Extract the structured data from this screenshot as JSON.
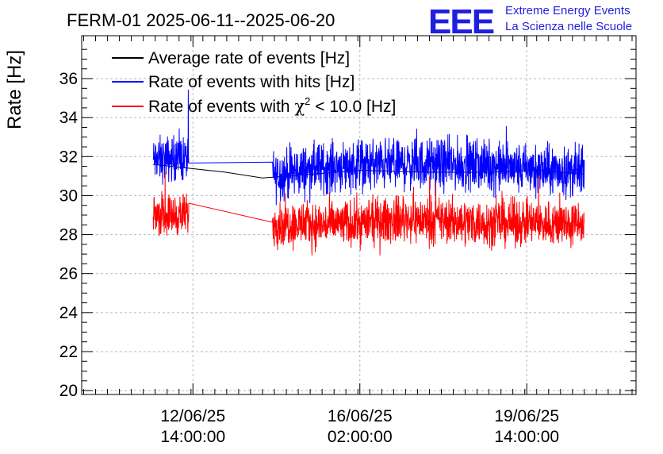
{
  "chart_data": {
    "type": "line",
    "title": "FERM-01 2025-06-11--2025-06-20",
    "ylabel": "Rate [Hz]",
    "xlabel": "",
    "ylim": [
      19.8,
      38.2
    ],
    "y_ticks": [
      20,
      22,
      24,
      26,
      28,
      30,
      32,
      34,
      36
    ],
    "xlim_hours_since_2025-06-11T00:00": [
      -18,
      261
    ],
    "x_ticks": [
      {
        "label_date": "12/06/25",
        "label_time": "14:00:00",
        "hours": 38
      },
      {
        "label_date": "16/06/25",
        "label_time": "02:00:00",
        "hours": 122
      },
      {
        "label_date": "19/06/25",
        "label_time": "14:00:00",
        "hours": 206
      }
    ],
    "grid": true,
    "legend_position": "top-left",
    "series": [
      {
        "name": "Average rate of events [Hz]",
        "color": "#000000",
        "segments": [
          {
            "x_hours": [
              18.0,
              54.5,
              73.0,
              122.5,
              156.0,
              188.0,
              212.0,
              235.0
            ],
            "y": [
              31.6,
              31.2,
              30.9,
              31.3,
              31.2,
              31.2,
              31.3,
              31.1
            ]
          }
        ]
      },
      {
        "name": "Rate of events with hits [Hz]",
        "color": "#0000ff",
        "segments": [
          {
            "x_hours": [
              18.0,
              27.0,
              36.0
            ],
            "y": [
              31.8,
              31.9,
              31.9
            ],
            "noise": 1.0
          },
          {
            "x_hours": [
              78.0,
              100.0,
              122.0,
              144.0,
              166.0,
              188.0,
              212.0,
              235.0
            ],
            "y": [
              31.0,
              31.4,
              31.6,
              31.6,
              31.6,
              31.5,
              31.3,
              31.2
            ],
            "noise": 1.1
          }
        ]
      },
      {
        "name": "Rate of events with χ² < 10.0 [Hz]",
        "color": "#ff0000",
        "segments": [
          {
            "x_hours": [
              18.0,
              27.0,
              36.0
            ],
            "y": [
              29.1,
              29.0,
              29.0
            ],
            "noise": 0.9
          },
          {
            "x_hours": [
              78.0,
              100.0,
              122.0,
              144.0,
              166.0,
              188.0,
              212.0,
              235.0
            ],
            "y": [
              28.6,
              28.5,
              28.6,
              28.8,
              28.7,
              28.6,
              28.6,
              28.5
            ],
            "noise": 1.0
          }
        ]
      }
    ]
  },
  "logo": {
    "text": "EEE",
    "line1": "Extreme Energy Events",
    "line2": "La Scienza nelle Scuole"
  },
  "legend": {
    "label_black": "Average rate of events [Hz]",
    "label_blue": "Rate of events with hits [Hz]",
    "label_red_prefix": "Rate of events with ",
    "label_red_symbol": "χ",
    "label_red_sup": "2",
    "label_red_suffix": " < 10.0 [Hz]"
  }
}
